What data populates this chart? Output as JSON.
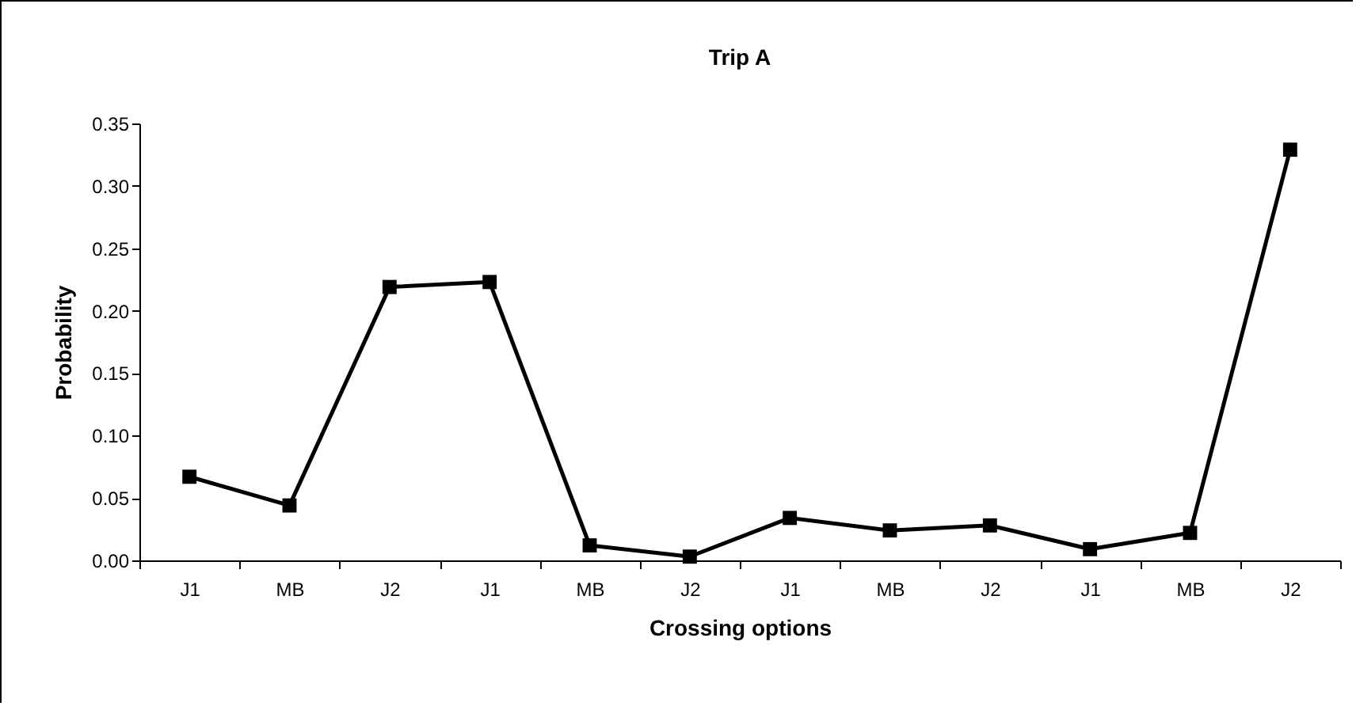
{
  "chart_data": {
    "type": "line",
    "title": "Trip A",
    "xlabel": "Crossing options",
    "ylabel": "Probability",
    "categories": [
      "J1",
      "MB",
      "J2",
      "J1",
      "MB",
      "J2",
      "J1",
      "MB",
      "J2",
      "J1",
      "MB",
      "J2"
    ],
    "series": [
      {
        "color": "#000000",
        "values": [
          0.067,
          0.044,
          0.219,
          0.223,
          0.012,
          0.003,
          0.034,
          0.024,
          0.028,
          0.009,
          0.022,
          0.329
        ]
      }
    ],
    "ylim": [
      0,
      0.35
    ],
    "yticks": [
      {
        "value": 0,
        "label": "0.00"
      },
      {
        "value": 0.05,
        "label": "0.05"
      },
      {
        "value": 0.1,
        "label": "0.10"
      },
      {
        "value": 0.15,
        "label": "0.15"
      },
      {
        "value": 0.2,
        "label": "0.20"
      },
      {
        "value": 0.25,
        "label": "0.25"
      },
      {
        "value": 0.3,
        "label": "0.30"
      },
      {
        "value": 0.35,
        "label": "0.35"
      }
    ],
    "marker": "square",
    "line_style": "solid"
  }
}
